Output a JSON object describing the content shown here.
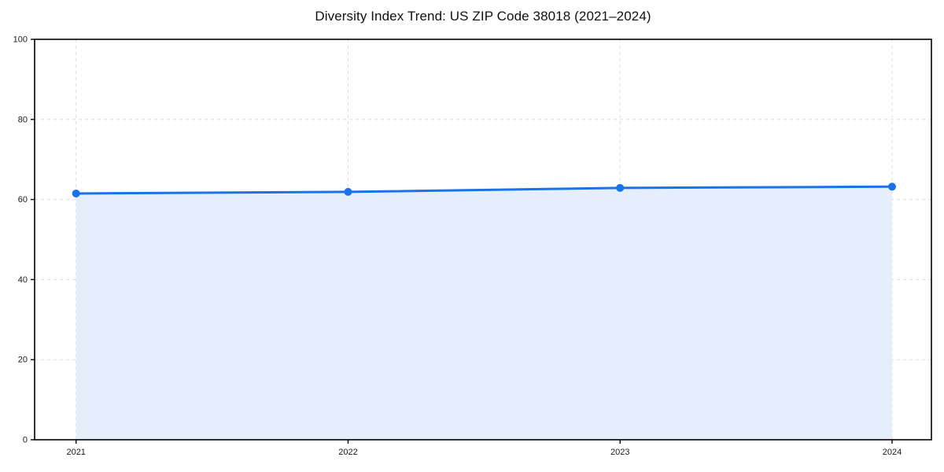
{
  "chart_data": {
    "type": "line",
    "title": "Diversity Index Trend: US ZIP Code 38018 (2021–2024)",
    "categories": [
      "2021",
      "2022",
      "2023",
      "2024"
    ],
    "series": [
      {
        "name": "Diversity Index",
        "values": [
          61.5,
          61.9,
          62.9,
          63.2
        ]
      }
    ],
    "xlabel": "",
    "ylabel": "",
    "ylim": [
      0,
      100
    ],
    "y_ticks": [
      0,
      20,
      40,
      60,
      80,
      100
    ],
    "grid": true,
    "grid_style": "dashed",
    "legend": "none",
    "area_fill": true,
    "colors": {
      "line": "#1a73e8",
      "marker": "#1a73e8",
      "area_fill": "#e5eefb",
      "gridline": "#dcdcdc",
      "axis": "#000000",
      "tick_label": "#1a1a1a",
      "title": "#111111",
      "background": "#ffffff"
    }
  }
}
